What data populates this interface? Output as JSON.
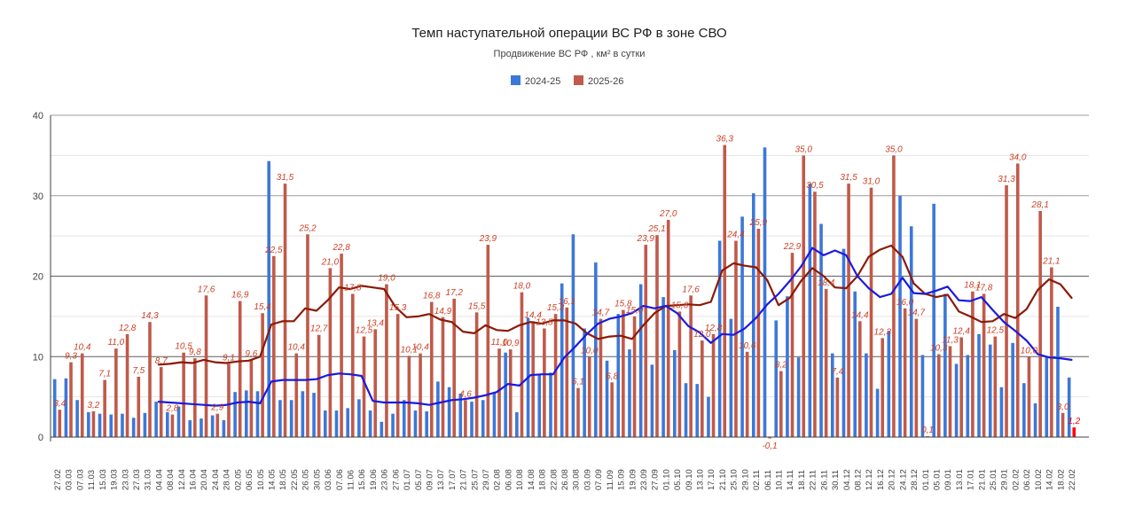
{
  "title": "Темп наступательной операции ВС РФ в зоне СВО",
  "subtitle": "Продвижение ВС РФ , км² в сутки",
  "legend": {
    "items": [
      {
        "label": "2024-25",
        "color": "#3c78d8"
      },
      {
        "label": "2025-26",
        "color": "#c05a4a"
      }
    ]
  },
  "colors": {
    "blue_bar": "#3c78d8",
    "red_bar": "#c05a4a",
    "red_label": "#cc4125",
    "highlight_bar": "#ff0000",
    "blue_trend": "#1a1ae0",
    "dark_red_trend": "#8b1a08",
    "axis_text": "#424242",
    "major_grid_low": "#5f5f5f",
    "major_grid_high": "#9e9e9e",
    "minor_grid": "#e4e4e4"
  },
  "chart_data": {
    "type": "bar",
    "title": "Темп наступательной операции ВС РФ в зоне СВО",
    "subtitle": "Продвижение ВС РФ , км² в сутки",
    "ylim": [
      0,
      40
    ],
    "yticks": [
      0,
      10,
      20,
      30,
      40
    ],
    "grid": "major+minor",
    "legend_position": "top",
    "categories": [
      "27.02",
      "03.03",
      "07.03",
      "11.03",
      "15.03",
      "19.03",
      "23.03",
      "27.03",
      "31.03",
      "04.04",
      "08.04",
      "12.04",
      "16.04",
      "20.04",
      "24.04",
      "28.04",
      "02.05",
      "06.05",
      "10.05",
      "14.05",
      "18.05",
      "22.05",
      "26.05",
      "30.05",
      "03.06",
      "07.06",
      "11.06",
      "15.06",
      "19.06",
      "23.06",
      "27.06",
      "01.07",
      "05.07",
      "09.07",
      "13.07",
      "17.07",
      "21.07",
      "25.07",
      "29.07",
      "02.08",
      "06.08",
      "10.08",
      "14.08",
      "18.08",
      "22.08",
      "26.08",
      "30.08",
      "03.09",
      "07.09",
      "11.09",
      "15.09",
      "19.09",
      "23.09",
      "27.09",
      "01.10",
      "05.10",
      "09.10",
      "13.10",
      "17.10",
      "21.10",
      "25.10",
      "29.10",
      "02.11",
      "06.11",
      "10.11",
      "14.11",
      "18.11",
      "22.11",
      "26.11",
      "30.11",
      "04.12",
      "08.12",
      "12.12",
      "16.12",
      "20.12",
      "24.12",
      "28.12",
      "01.01",
      "05.01",
      "09.01",
      "13.01",
      "17.01",
      "21.01",
      "25.01",
      "29.01",
      "02.02",
      "06.02",
      "10.02",
      "14.02",
      "18.02",
      "22.02"
    ],
    "series": [
      {
        "name": "2024-25",
        "color": "#3c78d8",
        "labels_shown": false,
        "values": [
          7.2,
          7.3,
          4.6,
          3.1,
          2.9,
          2.8,
          2.9,
          2.4,
          3.0,
          4.4,
          3.1,
          3.8,
          2.1,
          2.3,
          2.7,
          2.1,
          5.6,
          5.8,
          5.7,
          34.3,
          4.6,
          4.6,
          5.7,
          5.5,
          3.3,
          3.3,
          3.6,
          4.7,
          3.3,
          1.9,
          2.9,
          4.6,
          3.3,
          3.2,
          6.9,
          6.2,
          5.4,
          4.4,
          4.6,
          5.5,
          10.5,
          3.1,
          14.8,
          7.8,
          8.0,
          19.1,
          25.2,
          13.5,
          21.7,
          9.5,
          15.3,
          10.9,
          19.0,
          9.0,
          17.4,
          10.8,
          6.7,
          6.6,
          5.0,
          24.4,
          14.7,
          27.4,
          30.3,
          36.0,
          14.5,
          17.5,
          9.9,
          31.5,
          26.5,
          10.4,
          23.4,
          18.1,
          10.4,
          6.0,
          13.2,
          30.0,
          26.2,
          10.2,
          29.0,
          17.8,
          9.1,
          10.2,
          12.8,
          11.5,
          6.2,
          11.7,
          6.7,
          4.2,
          9.9,
          16.2,
          7.4
        ]
      },
      {
        "name": "2025-26",
        "color": "#c05a4a",
        "label_color": "#cc4125",
        "labels_shown": true,
        "highlight_last_color": "#ff0000",
        "values": [
          3.4,
          9.3,
          10.4,
          3.2,
          7.1,
          11.0,
          12.8,
          7.5,
          14.3,
          8.7,
          2.8,
          10.5,
          9.8,
          17.6,
          2.9,
          9.1,
          16.9,
          9.6,
          15.4,
          22.5,
          31.5,
          10.4,
          25.2,
          12.7,
          21.0,
          22.8,
          17.8,
          12.5,
          13.4,
          19.0,
          15.3,
          10.1,
          10.4,
          16.8,
          14.9,
          17.2,
          4.6,
          15.5,
          23.9,
          11.0,
          10.9,
          18.0,
          14.4,
          13.5,
          15.3,
          16.1,
          6.1,
          10.0,
          14.7,
          6.8,
          15.8,
          15.0,
          23.9,
          25.1,
          27.0,
          15.6,
          17.6,
          12.0,
          12.8,
          36.3,
          24.4,
          10.6,
          25.9,
          -0.1,
          8.2,
          22.9,
          35.0,
          30.5,
          18.4,
          7.4,
          31.5,
          14.4,
          31.0,
          12.3,
          35.0,
          16.0,
          14.7,
          0.1,
          10.3,
          11.3,
          12.4,
          18.1,
          17.8,
          12.5,
          31.3,
          34.0,
          10.0,
          28.1,
          21.1,
          3.0,
          1.2
        ]
      }
    ],
    "trend_lines": [
      {
        "name": "2024-25 smoothed",
        "color": "#1a1ae0",
        "start_index": 9,
        "values": [
          4.4,
          4.3,
          4.2,
          4.1,
          4.0,
          3.9,
          4.0,
          4.3,
          4.4,
          4.2,
          6.9,
          7.1,
          7.1,
          7.1,
          7.2,
          7.7,
          7.9,
          7.8,
          7.6,
          4.5,
          4.3,
          4.3,
          4.3,
          4.2,
          4.0,
          4.3,
          4.6,
          4.7,
          4.9,
          5.2,
          5.6,
          6.6,
          6.4,
          7.7,
          7.8,
          7.8,
          9.9,
          11.3,
          12.8,
          14.1,
          14.7,
          15.0,
          15.4,
          16.3,
          16.0,
          16.3,
          15.4,
          13.8,
          13.0,
          11.7,
          12.8,
          12.7,
          13.5,
          14.8,
          16.5,
          17.8,
          19.4,
          21.2,
          23.5,
          22.6,
          23.2,
          22.6,
          20.0,
          18.5,
          17.4,
          17.8,
          19.8,
          17.9,
          17.8,
          18.2,
          18.7,
          17.0,
          16.9,
          17.4,
          15.8,
          14.3,
          13.2,
          12.0,
          10.3,
          9.9,
          9.8,
          9.6
        ]
      },
      {
        "name": "2025-26 smoothed",
        "color": "#8b1a08",
        "start_index": 9,
        "values": [
          9.0,
          9.1,
          9.3,
          9.2,
          9.6,
          9.3,
          9.2,
          9.4,
          9.5,
          10.0,
          14.0,
          14.4,
          14.4,
          16.0,
          15.7,
          17.0,
          18.6,
          18.4,
          18.8,
          18.6,
          18.4,
          16.2,
          14.9,
          15.0,
          15.3,
          14.6,
          14.3,
          13.1,
          12.9,
          13.9,
          13.3,
          13.2,
          13.9,
          14.3,
          14.1,
          14.5,
          14.5,
          14.1,
          12.9,
          12.2,
          12.5,
          12.6,
          12.2,
          13.9,
          15.4,
          16.3,
          16.4,
          16.5,
          16.4,
          16.8,
          20.7,
          21.6,
          21.3,
          21.1,
          19.5,
          16.4,
          17.3,
          19.4,
          21.0,
          20.0,
          18.6,
          18.5,
          20.0,
          22.4,
          23.3,
          23.8,
          22.4,
          19.1,
          17.8,
          17.4,
          17.7,
          15.6,
          15.0,
          14.3,
          14.4,
          15.3,
          14.8,
          15.9,
          18.3,
          19.6,
          19.0,
          17.3
        ]
      }
    ]
  }
}
